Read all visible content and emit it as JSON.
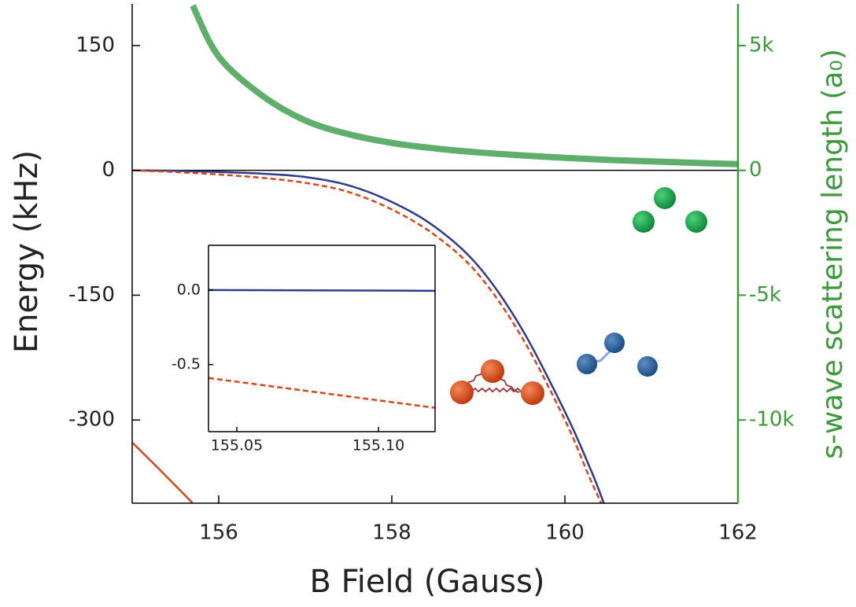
{
  "chart_data": [
    {
      "type": "line",
      "xlabel": "B Field (Gauss)",
      "ylabel": "Energy (kHz)",
      "y2label": "s-wave scattering length (a₀)",
      "xlim": [
        155,
        162
      ],
      "xticks": [
        156,
        158,
        160,
        162
      ],
      "ylim": [
        -400,
        200
      ],
      "yticks": [
        150,
        0,
        -150,
        -300
      ],
      "y2lim": [
        -13333,
        6667
      ],
      "y2ticks": [
        {
          "value": 5000,
          "label": "5k"
        },
        {
          "value": 0,
          "label": "0"
        },
        {
          "value": -5000,
          "label": "-5k"
        },
        {
          "value": -10000,
          "label": "-10k"
        }
      ],
      "y2color": "#3a9a3a",
      "series": [
        {
          "color": "#2e3a8c",
          "style": "solid",
          "x": [
            155,
            155.5,
            156,
            156.5,
            157,
            157.5,
            158,
            158.5,
            159,
            159.5,
            160,
            160.3,
            160.45
          ],
          "values": [
            0,
            -0.5,
            -2,
            -4,
            -8,
            -18,
            -38,
            -68,
            -115,
            -190,
            -290,
            -360,
            -400
          ]
        },
        {
          "color": "#d9441a",
          "style": "dashed",
          "x": [
            155,
            155.5,
            156,
            156.5,
            157,
            157.5,
            158,
            158.5,
            159,
            159.5,
            160,
            160.28,
            160.42
          ],
          "values": [
            0,
            -2,
            -5,
            -9,
            -15,
            -26,
            -47,
            -78,
            -125,
            -200,
            -300,
            -368,
            -400
          ]
        },
        {
          "color": "#d9441a",
          "style": "solid",
          "x": [
            155,
            155.35,
            155.7
          ],
          "values": [
            -327,
            -363,
            -400
          ]
        },
        {
          "color": "#5fae6c",
          "style": "thick",
          "axis": "y2",
          "x": [
            155.7,
            156,
            156.5,
            157,
            157.5,
            158,
            158.5,
            159,
            159.5,
            160,
            160.5,
            161,
            161.5,
            162
          ],
          "values": [
            6600,
            4560,
            3000,
            2000,
            1450,
            1100,
            880,
            720,
            600,
            500,
            420,
            360,
            300,
            250
          ]
        }
      ]
    },
    {
      "type": "line",
      "xlim": [
        155.04,
        155.12
      ],
      "xticks": [
        155.05,
        {
          "value": 155.1,
          "label": "155.10"
        }
      ],
      "ylim": [
        -0.95,
        0.3
      ],
      "yticks": [
        {
          "value": 0,
          "label": "0.0"
        },
        {
          "value": -0.5,
          "label": "-0.5"
        }
      ],
      "series": [
        {
          "color": "#2e3a8c",
          "style": "solid",
          "x": [
            155.04,
            155.12
          ],
          "values": [
            0,
            -0.005
          ]
        },
        {
          "color": "#d9441a",
          "style": "dashed",
          "x": [
            155.04,
            155.12
          ],
          "values": [
            -0.59,
            -0.79
          ]
        }
      ]
    }
  ]
}
